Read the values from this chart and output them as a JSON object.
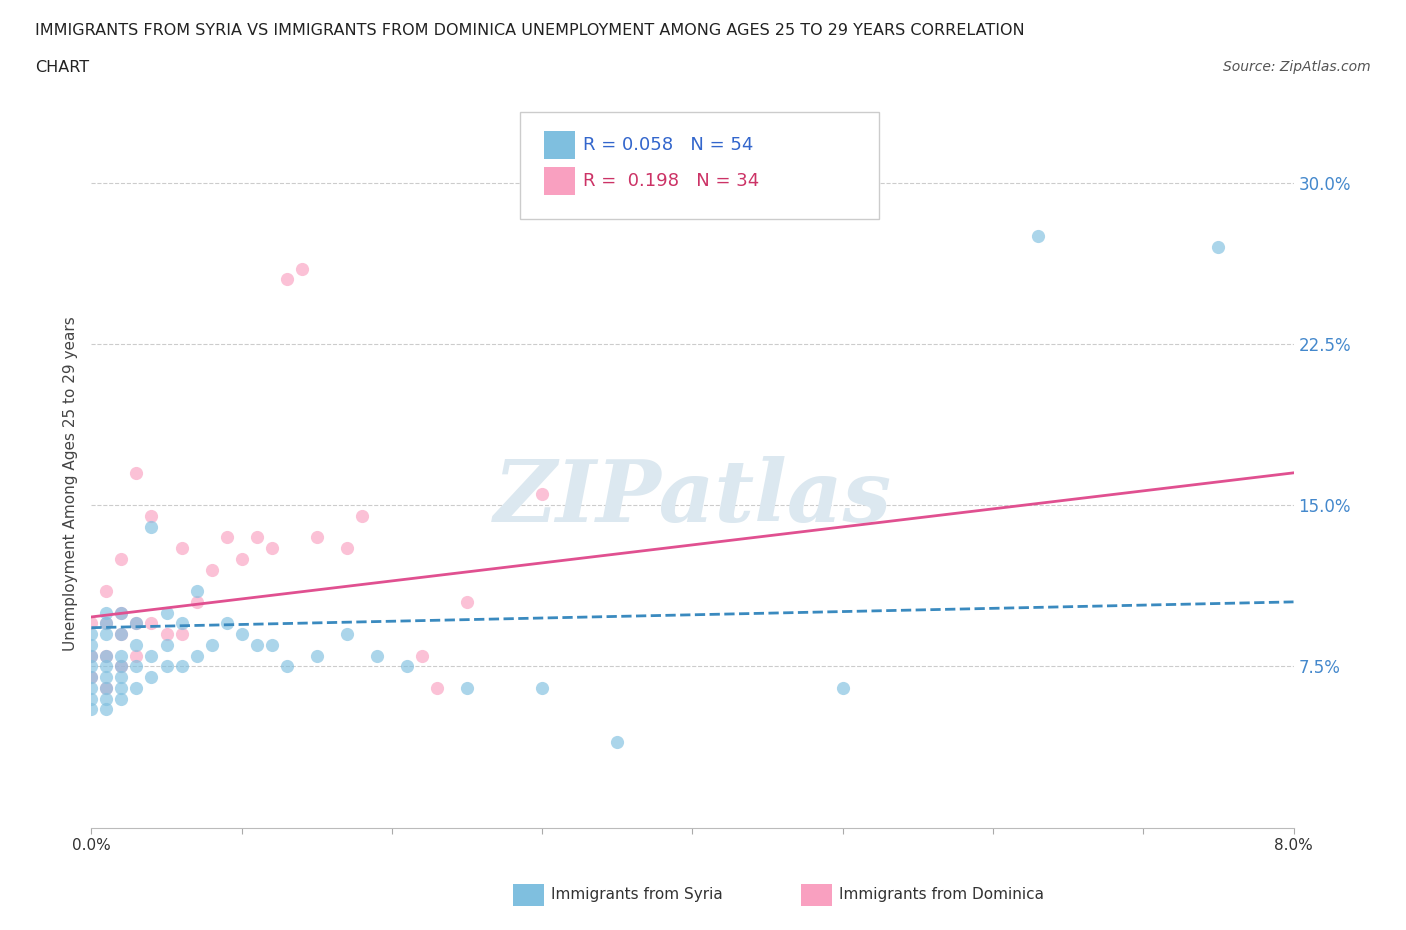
{
  "title_line1": "IMMIGRANTS FROM SYRIA VS IMMIGRANTS FROM DOMINICA UNEMPLOYMENT AMONG AGES 25 TO 29 YEARS CORRELATION",
  "title_line2": "CHART",
  "source_text": "Source: ZipAtlas.com",
  "syria_R": 0.058,
  "syria_N": 54,
  "dominica_R": 0.198,
  "dominica_N": 34,
  "xlim": [
    0.0,
    0.08
  ],
  "ylim": [
    0.0,
    0.32
  ],
  "yticks": [
    0.0,
    0.075,
    0.15,
    0.225,
    0.3
  ],
  "ytick_labels": [
    "",
    "7.5%",
    "15.0%",
    "22.5%",
    "30.0%"
  ],
  "syria_color": "#7fbfdf",
  "dominica_color": "#f9a0c0",
  "syria_line_color": "#3a8abf",
  "dominica_line_color": "#e05090",
  "watermark_color": "#dce8f0",
  "background_color": "#ffffff",
  "syria_scatter_x": [
    0.0,
    0.0,
    0.0,
    0.0,
    0.0,
    0.0,
    0.0,
    0.0,
    0.001,
    0.001,
    0.001,
    0.001,
    0.001,
    0.001,
    0.001,
    0.001,
    0.001,
    0.002,
    0.002,
    0.002,
    0.002,
    0.002,
    0.002,
    0.002,
    0.003,
    0.003,
    0.003,
    0.003,
    0.004,
    0.004,
    0.004,
    0.005,
    0.005,
    0.005,
    0.006,
    0.006,
    0.007,
    0.007,
    0.008,
    0.009,
    0.01,
    0.011,
    0.012,
    0.013,
    0.015,
    0.017,
    0.019,
    0.021,
    0.025,
    0.03,
    0.035,
    0.05,
    0.063,
    0.075
  ],
  "syria_scatter_y": [
    0.055,
    0.06,
    0.065,
    0.07,
    0.075,
    0.08,
    0.085,
    0.09,
    0.055,
    0.06,
    0.065,
    0.07,
    0.075,
    0.08,
    0.09,
    0.095,
    0.1,
    0.06,
    0.065,
    0.07,
    0.075,
    0.08,
    0.09,
    0.1,
    0.065,
    0.075,
    0.085,
    0.095,
    0.07,
    0.08,
    0.14,
    0.075,
    0.085,
    0.1,
    0.075,
    0.095,
    0.08,
    0.11,
    0.085,
    0.095,
    0.09,
    0.085,
    0.085,
    0.075,
    0.08,
    0.09,
    0.08,
    0.075,
    0.065,
    0.065,
    0.04,
    0.065,
    0.275,
    0.27
  ],
  "dominica_scatter_x": [
    0.0,
    0.0,
    0.0,
    0.001,
    0.001,
    0.001,
    0.001,
    0.002,
    0.002,
    0.002,
    0.002,
    0.003,
    0.003,
    0.003,
    0.004,
    0.004,
    0.005,
    0.006,
    0.006,
    0.007,
    0.008,
    0.009,
    0.01,
    0.011,
    0.012,
    0.013,
    0.014,
    0.015,
    0.017,
    0.018,
    0.022,
    0.023,
    0.025,
    0.03
  ],
  "dominica_scatter_y": [
    0.07,
    0.08,
    0.095,
    0.065,
    0.08,
    0.095,
    0.11,
    0.075,
    0.09,
    0.1,
    0.125,
    0.08,
    0.095,
    0.165,
    0.095,
    0.145,
    0.09,
    0.09,
    0.13,
    0.105,
    0.12,
    0.135,
    0.125,
    0.135,
    0.13,
    0.255,
    0.26,
    0.135,
    0.13,
    0.145,
    0.08,
    0.065,
    0.105,
    0.155
  ],
  "syria_trendline_x": [
    0.0,
    0.08
  ],
  "syria_trendline_y": [
    0.093,
    0.105
  ],
  "dominica_trendline_x": [
    0.0,
    0.08
  ],
  "dominica_trendline_y": [
    0.098,
    0.165
  ]
}
